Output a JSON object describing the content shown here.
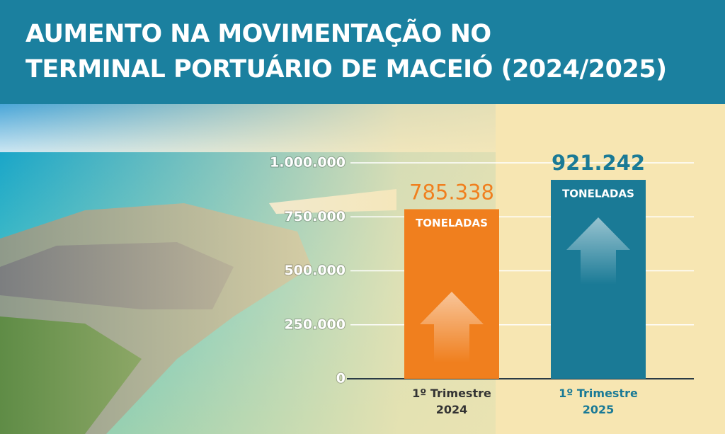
{
  "chart_data": {
    "type": "bar",
    "title": [
      "AUMENTO NA MOVIMENTAÇÃO NO",
      "TERMINAL PORTUÁRIO DE MACEIÓ (2024/2025)"
    ],
    "categories": [
      "1º Trimestre\n2024",
      "1º Trimestre\n2025"
    ],
    "values": [
      785338,
      921242
    ],
    "value_labels": [
      "785.338",
      "921.242"
    ],
    "unit_label": "TONELADAS",
    "colors": [
      "#f07f1e",
      "#1a7a96"
    ],
    "category_colors": [
      "#333333",
      "#1a7a96"
    ],
    "ylim": [
      0,
      1000000
    ],
    "yticks": [
      0,
      {
        "value": 250000,
        "label": "250.000"
      },
      {
        "value": 500000,
        "label": "500.000"
      },
      {
        "value": 750000,
        "label": "750.000"
      },
      {
        "value": 1000000,
        "label": "1.000.000"
      }
    ],
    "grid": true
  }
}
